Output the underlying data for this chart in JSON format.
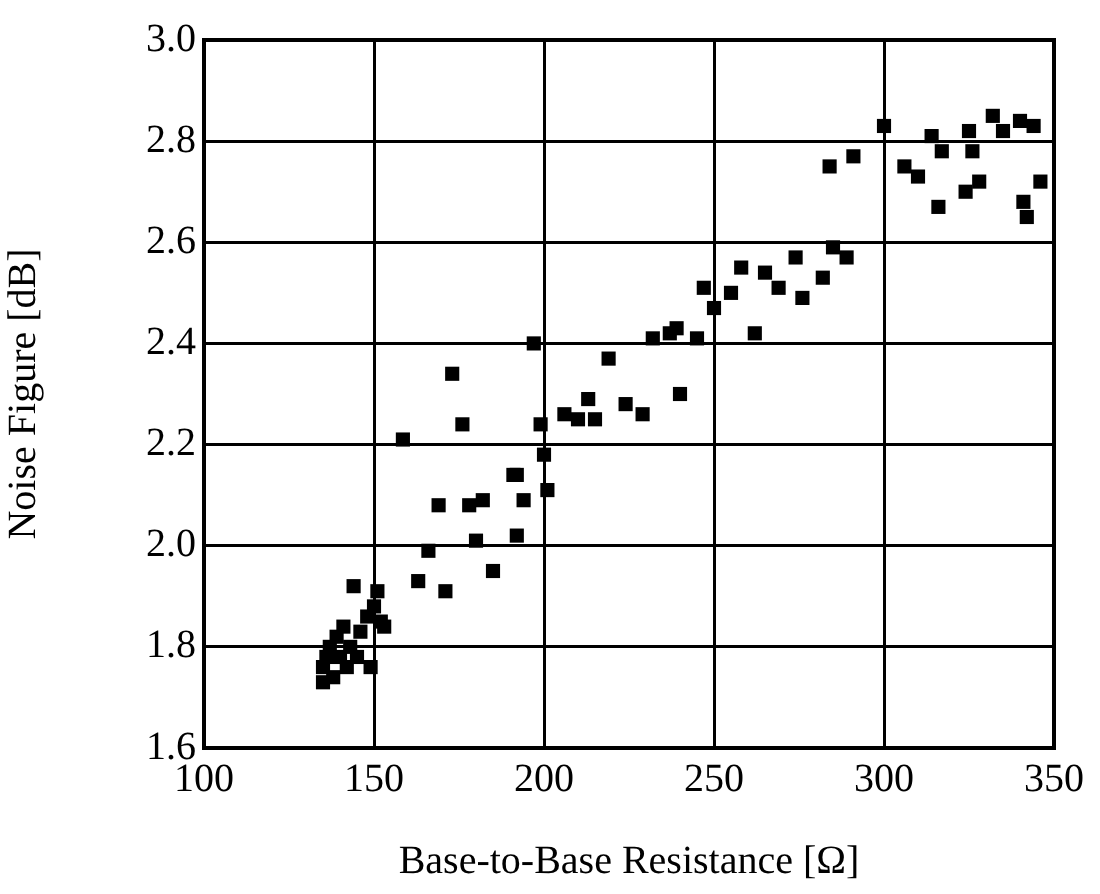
{
  "chart_data": {
    "type": "scatter",
    "xlabel": "Base-to-Base Resistance [Ω]",
    "ylabel": "Noise Figure [dB]",
    "xlim": [
      100,
      350
    ],
    "xticks": [
      100,
      150,
      200,
      250,
      300,
      350
    ],
    "ylim": [
      1.6,
      3.0
    ],
    "yticks": [
      1.6,
      1.8,
      {
        "value": 2,
        "label": "2.0"
      },
      2.2,
      2.4,
      2.6,
      2.8,
      {
        "value": 3,
        "label": "3.0"
      }
    ],
    "grid": true,
    "legend": false,
    "marker": "square",
    "series": [
      {
        "color": "#000000",
        "x": [
          135,
          135,
          136,
          137,
          138,
          139,
          140,
          141,
          142,
          143,
          144,
          145,
          146,
          148,
          149,
          150,
          151,
          152,
          153,
          158.5,
          163,
          166,
          169,
          171,
          173,
          176,
          178,
          180,
          182,
          185,
          191,
          192,
          192,
          194,
          197,
          199,
          200,
          201,
          206,
          210,
          213,
          215,
          219,
          224,
          229,
          232,
          237,
          239,
          240,
          245,
          247,
          250,
          255,
          258,
          262,
          265,
          269,
          274,
          276,
          282,
          285,
          289,
          284,
          291,
          300,
          306,
          310,
          314,
          316,
          317,
          324,
          325,
          326,
          328,
          332,
          335,
          340,
          341,
          342,
          344,
          346
        ],
        "values": [
          1.73,
          1.76,
          1.78,
          1.8,
          1.74,
          1.82,
          1.78,
          1.84,
          1.76,
          1.8,
          1.92,
          1.78,
          1.83,
          1.86,
          1.76,
          1.88,
          1.91,
          1.85,
          1.84,
          2.21,
          1.93,
          1.99,
          2.08,
          1.91,
          2.34,
          2.24,
          2.08,
          2.01,
          2.09,
          1.95,
          2.14,
          2.02,
          2.14,
          2.09,
          2.4,
          2.24,
          2.18,
          2.11,
          2.26,
          2.25,
          2.29,
          2.25,
          2.37,
          2.28,
          2.26,
          2.41,
          2.42,
          2.43,
          2.3,
          2.41,
          2.51,
          2.47,
          2.5,
          2.55,
          2.42,
          2.54,
          2.51,
          2.57,
          2.49,
          2.53,
          2.59,
          2.57,
          2.75,
          2.77,
          2.83,
          2.75,
          2.73,
          2.81,
          2.67,
          2.78,
          2.7,
          2.82,
          2.78,
          2.72,
          2.85,
          2.82,
          2.84,
          2.68,
          2.65,
          2.83,
          2.72
        ]
      }
    ]
  }
}
